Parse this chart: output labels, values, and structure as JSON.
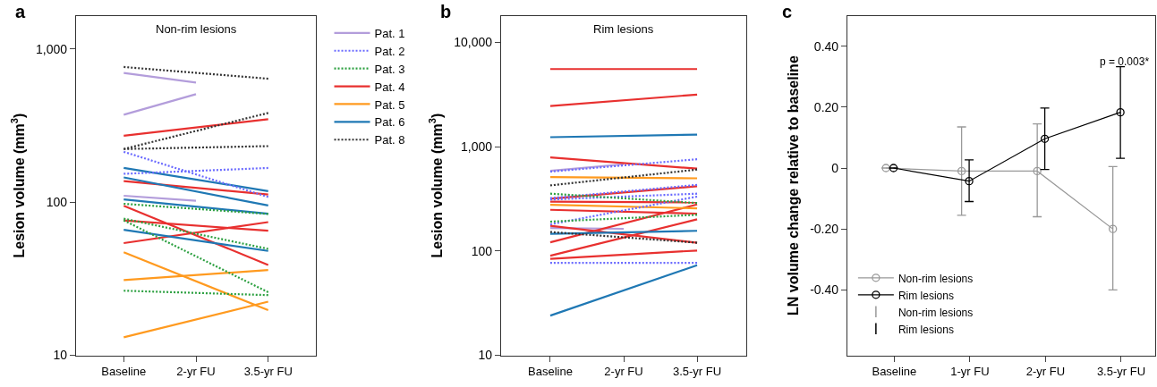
{
  "chart_data": [
    {
      "type": "line",
      "title": "a",
      "subtitle": "Non-rim lesions",
      "ylabel": "Lesion volume (mm$^{3}$)",
      "categories": [
        "Baseline",
        "2-yr FU",
        "3.5-yr FU"
      ],
      "log": true,
      "ylim": [
        10,
        1645
      ],
      "yticks": [
        10,
        100,
        {
          "value": 1000,
          "label": "1,000"
        }
      ],
      "legend": "right",
      "marker": "none",
      "series": [
        {
          "name": "Pat. 1",
          "color": "#b39ddb",
          "line_style": "solid",
          "values": [
            697,
            603,
            null
          ]
        },
        {
          "color": "#b39ddb",
          "line_style": "solid",
          "values": [
            372,
            506,
            null
          ]
        },
        {
          "color": "#b39ddb",
          "line_style": "solid",
          "values": [
            110,
            102,
            null
          ]
        },
        {
          "name": "Pat. 2",
          "color": "#6a6aff",
          "line_style": "dotted",
          "values": [
            213,
            null,
            108
          ]
        },
        {
          "color": "#6a6aff",
          "line_style": "dotted",
          "values": [
            153,
            null,
            167
          ]
        },
        {
          "name": "Pat. 3",
          "color": "#2ca040",
          "line_style": "dotted",
          "values": [
            97.5,
            null,
            83.6
          ]
        },
        {
          "color": "#2ca040",
          "line_style": "dotted",
          "values": [
            78,
            null,
            49.5
          ]
        },
        {
          "color": "#2ca040",
          "line_style": "dotted",
          "values": [
            76,
            null,
            25.8
          ]
        },
        {
          "color": "#2ca040",
          "line_style": "dotted",
          "values": [
            26.4,
            null,
            24.7
          ]
        },
        {
          "name": "Pat. 4",
          "color": "#e8302f",
          "line_style": "solid",
          "values": [
            271,
            null,
            348
          ]
        },
        {
          "color": "#e8302f",
          "line_style": "solid",
          "values": [
            137,
            null,
            112
          ]
        },
        {
          "color": "#e8302f",
          "line_style": "solid",
          "values": [
            94.5,
            null,
            38.9
          ]
        },
        {
          "color": "#e8302f",
          "line_style": "solid",
          "values": [
            76,
            null,
            65
          ]
        },
        {
          "color": "#e8302f",
          "line_style": "solid",
          "values": [
            54,
            null,
            74
          ]
        },
        {
          "name": "Pat. 5",
          "color": "#ff9a1f",
          "line_style": "solid",
          "values": [
            47,
            null,
            19.7
          ]
        },
        {
          "color": "#ff9a1f",
          "line_style": "solid",
          "values": [
            31,
            null,
            36
          ]
        },
        {
          "color": "#ff9a1f",
          "line_style": "solid",
          "values": [
            13.1,
            null,
            22.4
          ]
        },
        {
          "name": "Pat. 6",
          "color": "#1f78b4",
          "line_style": "solid",
          "values": [
            167,
            null,
            118
          ]
        },
        {
          "color": "#1f78b4",
          "line_style": "solid",
          "values": [
            145,
            null,
            95
          ]
        },
        {
          "color": "#1f78b4",
          "line_style": "solid",
          "values": [
            104,
            null,
            84
          ]
        },
        {
          "color": "#1f78b4",
          "line_style": "solid",
          "values": [
            66,
            null,
            48
          ]
        },
        {
          "name": "Pat. 8",
          "color": "#333333",
          "line_style": "dotted",
          "values": [
            762,
            null,
            639
          ]
        },
        {
          "color": "#333333",
          "line_style": "dotted",
          "values": [
            222,
            null,
            382
          ]
        },
        {
          "color": "#333333",
          "line_style": "dotted",
          "values": [
            222,
            null,
            232
          ]
        }
      ]
    },
    {
      "type": "line",
      "title": "b",
      "subtitle": "Rim lesions",
      "ylabel": "Lesion volume (mm$^{3}$)",
      "categories": [
        "Baseline",
        "2-yr FU",
        "3.5-yr FU"
      ],
      "log": true,
      "ylim": [
        10,
        17950
      ],
      "yticks": [
        10,
        100,
        {
          "value": 1000,
          "label": "1,000"
        },
        {
          "value": 10000,
          "label": "10,000"
        }
      ],
      "marker": "none",
      "series": [
        {
          "color": "#b39ddb",
          "line_style": "solid",
          "values": [
            587,
            678,
            null
          ]
        },
        {
          "color": "#b39ddb",
          "line_style": "solid",
          "values": [
            166,
            163,
            null
          ]
        },
        {
          "color": "#6a6aff",
          "line_style": "dotted",
          "values": [
            576,
            null,
            757
          ]
        },
        {
          "color": "#6a6aff",
          "line_style": "dotted",
          "values": [
            321,
            null,
            430
          ]
        },
        {
          "color": "#6a6aff",
          "line_style": "dotted",
          "values": [
            311,
            null,
            354
          ]
        },
        {
          "color": "#6a6aff",
          "line_style": "dotted",
          "values": [
            180,
            null,
            332
          ]
        },
        {
          "color": "#6a6aff",
          "line_style": "dotted",
          "values": [
            77,
            null,
            77
          ]
        },
        {
          "color": "#2ca040",
          "line_style": "dotted",
          "values": [
            354,
            null,
            288
          ]
        },
        {
          "color": "#2ca040",
          "line_style": "dotted",
          "values": [
            191,
            null,
            222
          ]
        },
        {
          "color": "#e8302f",
          "line_style": "solid",
          "values": [
            5540,
            null,
            5540
          ]
        },
        {
          "color": "#e8302f",
          "line_style": "solid",
          "values": [
            2450,
            null,
            3155
          ]
        },
        {
          "color": "#e8302f",
          "line_style": "solid",
          "values": [
            787,
            null,
            615
          ]
        },
        {
          "color": "#e8302f",
          "line_style": "solid",
          "values": [
            317,
            null,
            417
          ]
        },
        {
          "color": "#e8302f",
          "line_style": "solid",
          "values": [
            297,
            null,
            292
          ]
        },
        {
          "color": "#e8302f",
          "line_style": "solid",
          "values": [
            248,
            null,
            228
          ]
        },
        {
          "color": "#e8302f",
          "line_style": "solid",
          "values": [
            174,
            null,
            120
          ]
        },
        {
          "color": "#e8302f",
          "line_style": "solid",
          "values": [
            121,
            null,
            279
          ]
        },
        {
          "color": "#e8302f",
          "line_style": "solid",
          "values": [
            90,
            null,
            201
          ]
        },
        {
          "color": "#e8302f",
          "line_style": "solid",
          "values": [
            84,
            null,
            101
          ]
        },
        {
          "color": "#ff9a1f",
          "line_style": "solid",
          "values": [
            510,
            null,
            497
          ]
        },
        {
          "color": "#ff9a1f",
          "line_style": "solid",
          "values": [
            277,
            null,
            256
          ]
        },
        {
          "color": "#1f78b4",
          "line_style": "solid",
          "values": [
            1231,
            null,
            1304
          ]
        },
        {
          "color": "#1f78b4",
          "line_style": "solid",
          "values": [
            146,
            null,
            156
          ]
        },
        {
          "color": "#1f78b4",
          "line_style": "solid",
          "values": [
            24,
            null,
            73
          ]
        },
        {
          "color": "#333333",
          "line_style": "dotted",
          "values": [
            425,
            null,
            603
          ]
        },
        {
          "color": "#333333",
          "line_style": "dotted",
          "values": [
            152,
            null,
            120
          ]
        }
      ]
    },
    {
      "type": "line",
      "title": "c",
      "ylabel": "LN volume change relative to baseline",
      "categories": [
        "Baseline",
        "1-yr FU",
        "2-yr FU",
        "3.5-yr FU"
      ],
      "ylim": [
        -0.615,
        0.5
      ],
      "yticks": [
        {
          "value": -0.4,
          "label": "-0.40"
        },
        {
          "value": -0.2,
          "label": "-0.20"
        },
        0,
        {
          "value": 0.2,
          "label": "0.20"
        },
        {
          "value": 0.4,
          "label": "0.40"
        }
      ],
      "legend": "bottom left",
      "marker": "circle",
      "annotations": [
        "p = 0.003*"
      ],
      "series": [
        {
          "name": "Non-rim lesions",
          "color": "#999999",
          "values": [
            0,
            -0.01,
            -0.01,
            -0.2
          ],
          "errors": [
            null,
            [
              -0.155,
              0.135
            ],
            [
              -0.16,
              0.145
            ],
            [
              -0.4,
              0.005
            ]
          ]
        },
        {
          "name": "Rim lesions",
          "color": "#000000",
          "values": [
            0,
            -0.043,
            0.096,
            0.183
          ],
          "errors": [
            null,
            [
              -0.11,
              0.027
            ],
            [
              -0.005,
              0.197
            ],
            [
              0.032,
              0.333
            ]
          ]
        }
      ]
    }
  ]
}
